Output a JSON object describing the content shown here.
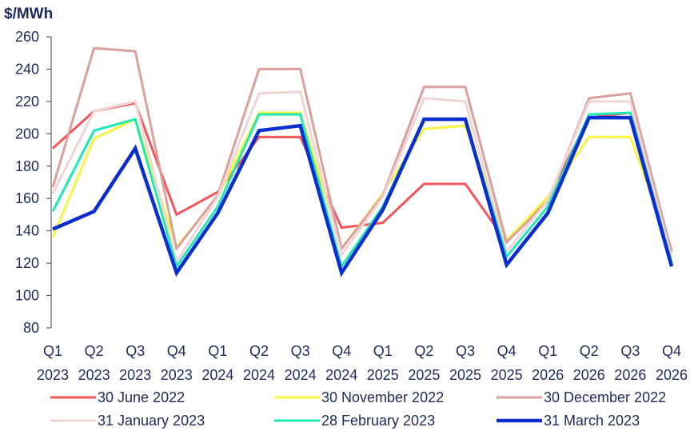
{
  "chart_data": {
    "type": "line",
    "title": "",
    "ylabel": "$/MWh",
    "xlabel": "",
    "ylim": [
      80,
      260
    ],
    "yticks": [
      80,
      100,
      120,
      140,
      160,
      180,
      200,
      220,
      240,
      260
    ],
    "categories": [
      {
        "q": "Q1",
        "y": "2023"
      },
      {
        "q": "Q2",
        "y": "2023"
      },
      {
        "q": "Q3",
        "y": "2023"
      },
      {
        "q": "Q4",
        "y": "2023"
      },
      {
        "q": "Q1",
        "y": "2024"
      },
      {
        "q": "Q2",
        "y": "2024"
      },
      {
        "q": "Q3",
        "y": "2024"
      },
      {
        "q": "Q4",
        "y": "2024"
      },
      {
        "q": "Q1",
        "y": "2025"
      },
      {
        "q": "Q2",
        "y": "2025"
      },
      {
        "q": "Q3",
        "y": "2025"
      },
      {
        "q": "Q4",
        "y": "2025"
      },
      {
        "q": "Q1",
        "y": "2026"
      },
      {
        "q": "Q2",
        "y": "2026"
      },
      {
        "q": "Q3",
        "y": "2026"
      },
      {
        "q": "Q4",
        "y": "2026"
      }
    ],
    "grid": false,
    "legend_position": "bottom",
    "series": [
      {
        "name": "30 June 2022",
        "color": "#f4555a",
        "width": 3,
        "values": [
          191,
          214,
          219,
          150,
          164,
          198,
          198,
          142,
          145,
          169,
          169,
          133,
          160,
          210,
          213,
          128
        ]
      },
      {
        "name": "30 November 2022",
        "color": "#f5f542",
        "width": 3,
        "values": [
          136,
          197,
          209,
          130,
          161,
          213,
          213,
          129,
          163,
          203,
          205,
          134,
          161,
          198,
          198,
          128
        ]
      },
      {
        "name": "30 December 2022",
        "color": "#d9a09c",
        "width": 3,
        "values": [
          167,
          253,
          251,
          129,
          162,
          240,
          240,
          129,
          162,
          229,
          229,
          133,
          158,
          222,
          225,
          127
        ]
      },
      {
        "name": "31 January 2023",
        "color": "#f1d4d6",
        "width": 3,
        "values": [
          163,
          214,
          220,
          121,
          161,
          225,
          226,
          125,
          161,
          222,
          220,
          127,
          159,
          220,
          220,
          123
        ]
      },
      {
        "name": "28 February 2023",
        "color": "#1de9b6",
        "width": 3,
        "values": [
          152,
          202,
          209,
          118,
          155,
          212,
          212,
          118,
          155,
          209,
          209,
          124,
          155,
          212,
          213,
          120
        ]
      },
      {
        "name": "31 March 2023",
        "color": "#0b2ecf",
        "width": 4.5,
        "values": [
          141,
          152,
          191,
          114,
          151,
          202,
          205,
          114,
          153,
          209,
          209,
          119,
          151,
          210,
          210,
          118
        ]
      }
    ]
  }
}
